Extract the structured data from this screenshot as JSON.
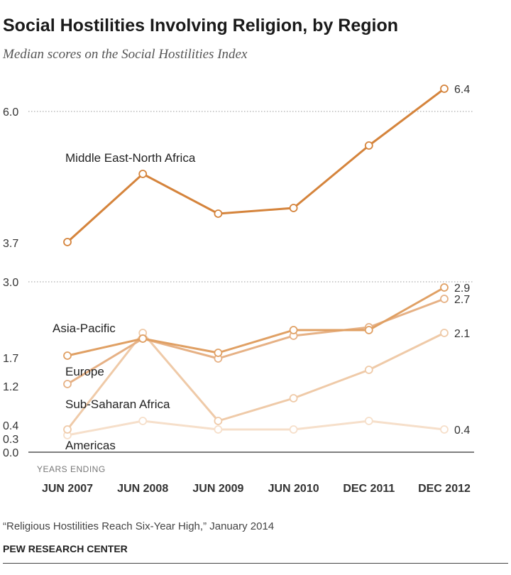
{
  "title": "Social Hostilities Involving Religion, by Region",
  "subtitle": "Median scores on the Social Hostilities Index",
  "source": "“Religious Hostilities Reach Six-Year High,” January 2014",
  "org": "PEW RESEARCH CENTER",
  "chart_data": {
    "type": "line",
    "x_axis_note": "YEARS ENDING",
    "categories": [
      "JUN 2007",
      "JUN 2008",
      "JUN 2009",
      "JUN 2010",
      "DEC 2011",
      "DEC 2012"
    ],
    "y_ticks": [
      "0.0",
      "3.0",
      "6.0"
    ],
    "ylim": [
      0,
      6.6
    ],
    "series": [
      {
        "name": "Middle East-North Africa",
        "values": [
          3.7,
          4.9,
          4.2,
          4.3,
          5.4,
          6.4
        ],
        "color": "#d5843c",
        "start_label": "3.7",
        "end_label": "6.4"
      },
      {
        "name": "Asia-Pacific",
        "values": [
          1.7,
          2.0,
          1.75,
          2.15,
          2.15,
          2.9
        ],
        "color": "#e0a064",
        "start_label": "1.7",
        "end_label": "2.9"
      },
      {
        "name": "Europe",
        "values": [
          1.2,
          2.0,
          1.65,
          2.05,
          2.2,
          2.7
        ],
        "color": "#e6b185",
        "start_label": "1.2",
        "end_label": "2.7"
      },
      {
        "name": "Sub-Saharan Africa",
        "values": [
          0.4,
          2.1,
          0.55,
          0.95,
          1.45,
          2.1
        ],
        "color": "#efcaa8",
        "start_label": "0.4",
        "end_label": "2.1"
      },
      {
        "name": "Americas",
        "values": [
          0.3,
          0.55,
          0.4,
          0.4,
          0.55,
          0.4
        ],
        "color": "#f6dfca",
        "start_label": "0.3",
        "end_label": "0.4"
      }
    ]
  }
}
